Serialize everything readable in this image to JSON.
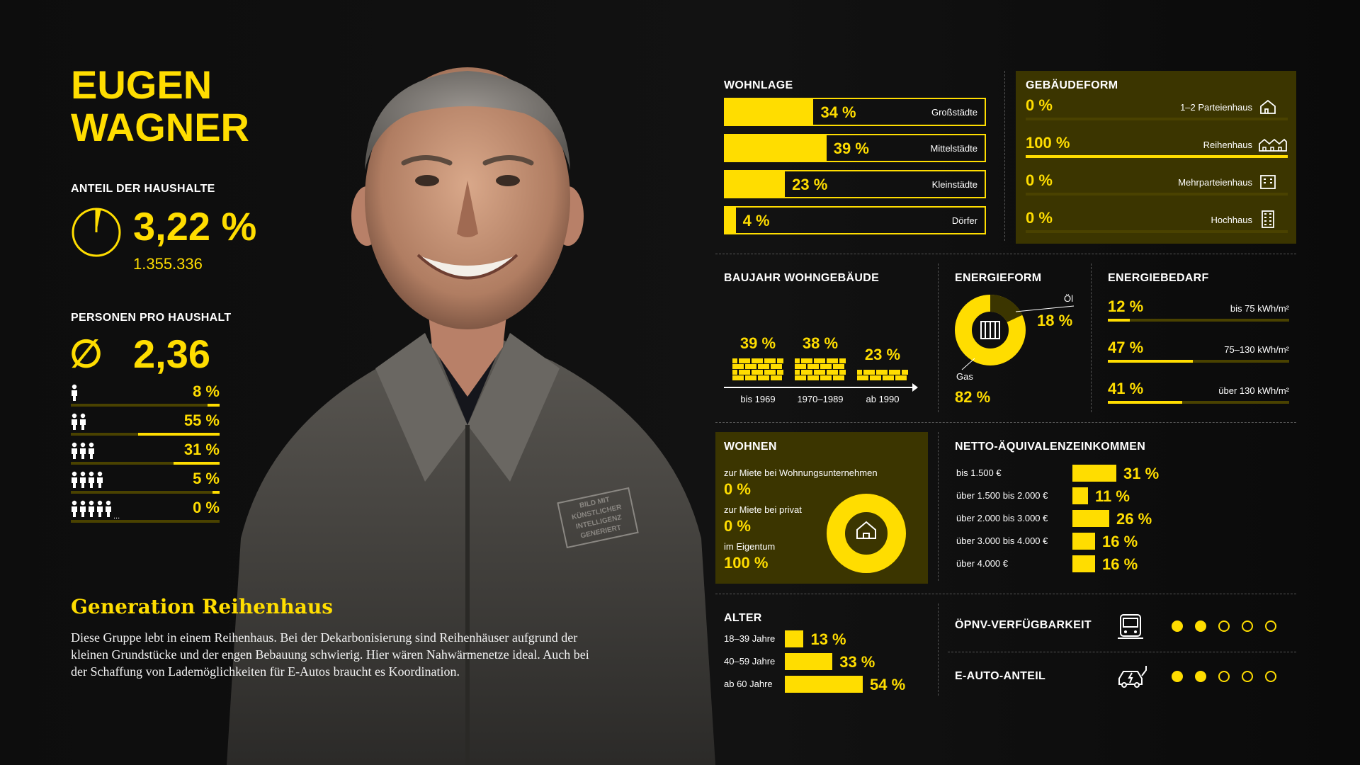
{
  "persona": {
    "first_name": "EUGEN",
    "last_name": "WAGNER",
    "share_title": "ANTEIL DER HAUSHALTE",
    "share_value": "3,22 %",
    "share_fraction": 0.0322,
    "share_count": "1.355.336",
    "persons_title": "PERSONEN PRO HAUSHALT",
    "avg_symbol": "∅",
    "avg_value": "2,36",
    "persons": [
      {
        "count": 1,
        "label": "8 %",
        "value": 8
      },
      {
        "count": 2,
        "label": "55 %",
        "value": 55
      },
      {
        "count": 3,
        "label": "31 %",
        "value": 31
      },
      {
        "count": 4,
        "label": "5 %",
        "value": 5
      },
      {
        "count": 5,
        "label": "0 %",
        "value": 0,
        "more": "..."
      }
    ],
    "story_title": "Generation Reihenhaus",
    "story_text": "Diese Gruppe lebt in einem Reihenhaus. Bei der Dekarbonisierung sind Reihenhäuser aufgrund der kleinen Grundstücke und der engen Bebauung schwierig. Hier wären Nahwärmenetze ideal. Auch bei der Schaffung von Lademöglichkeiten für E-Autos braucht es Koordination.",
    "stamp_lines": [
      "BILD MIT",
      "KÜNSTLICHER",
      "INTELLIGENZ",
      "GENERIERT"
    ]
  },
  "wohnlage": {
    "title": "WOHNLAGE",
    "items": [
      {
        "label": "34 %",
        "value": 34,
        "name": "Großstädte"
      },
      {
        "label": "39 %",
        "value": 39,
        "name": "Mittelstädte"
      },
      {
        "label": "23 %",
        "value": 23,
        "name": "Kleinstädte"
      },
      {
        "label": "4 %",
        "value": 4,
        "name": "Dörfer"
      }
    ]
  },
  "gebaeudeform": {
    "title": "GEBÄUDEFORM",
    "items": [
      {
        "label": "0 %",
        "value": 0,
        "name": "1–2 Parteienhaus",
        "icon": "house-icon"
      },
      {
        "label": "100 %",
        "value": 100,
        "name": "Reihenhaus",
        "icon": "row-house-icon"
      },
      {
        "label": "0 %",
        "value": 0,
        "name": "Mehrparteienhaus",
        "icon": "apartment-icon"
      },
      {
        "label": "0 %",
        "value": 0,
        "name": "Hochhaus",
        "icon": "highrise-icon"
      }
    ]
  },
  "baujahr": {
    "title": "BAUJAHR WOHNGEBÄUDE",
    "items": [
      {
        "label": "39 %",
        "value": 39,
        "name": "bis 1969"
      },
      {
        "label": "38 %",
        "value": 38,
        "name": "1970–1989"
      },
      {
        "label": "23 %",
        "value": 23,
        "name": "ab 1990"
      }
    ]
  },
  "energieform": {
    "title": "ENERGIEFORM",
    "oil_name": "Öl",
    "oil_label": "18 %",
    "oil_value": 18,
    "gas_name": "Gas",
    "gas_label": "82 %",
    "gas_value": 82
  },
  "energiebedarf": {
    "title": "ENERGIEBEDARF",
    "items": [
      {
        "label": "12 %",
        "value": 12,
        "name": "bis 75 kWh/m²"
      },
      {
        "label": "47 %",
        "value": 47,
        "name": "75–130 kWh/m²"
      },
      {
        "label": "41 %",
        "value": 41,
        "name": "über 130 kWh/m²"
      }
    ]
  },
  "wohnen": {
    "title": "WOHNEN",
    "items": [
      {
        "name": "zur Miete bei Wohnungsunternehmen",
        "label": "0 %"
      },
      {
        "name": "zur Miete bei privat",
        "label": "0 %"
      },
      {
        "name": "im Eigentum",
        "label": "100 %"
      }
    ]
  },
  "einkommen": {
    "title": "NETTO-ÄQUIVALENZEINKOMMEN",
    "items": [
      {
        "name": "bis 1.500 €",
        "label": "31 %",
        "value": 31
      },
      {
        "name": "über 1.500 bis 2.000 €",
        "label": "11 %",
        "value": 11
      },
      {
        "name": "über 2.000 bis 3.000 €",
        "label": "26 %",
        "value": 26
      },
      {
        "name": "über 3.000 bis 4.000 €",
        "label": "16 %",
        "value": 16
      },
      {
        "name": "über 4.000 €",
        "label": "16 %",
        "value": 16
      }
    ]
  },
  "alter": {
    "title": "ALTER",
    "items": [
      {
        "name": "18–39 Jahre",
        "label": "13 %",
        "value": 13
      },
      {
        "name": "40–59 Jahre",
        "label": "33 %",
        "value": 33
      },
      {
        "name": "ab 60 Jahre",
        "label": "54 %",
        "value": 54
      }
    ]
  },
  "ratings": {
    "oepnv": {
      "title": "ÖPNV-VERFÜGBARKEIT",
      "score": 2,
      "max": 5,
      "icon": "bus-icon"
    },
    "eauto": {
      "title": "E-AUTO-ANTEIL",
      "score": 2,
      "max": 5,
      "icon": "electric-car-icon"
    }
  },
  "colors": {
    "accent": "#ffdd00",
    "background": "#0d0d0d",
    "panel": "#3b3500"
  }
}
